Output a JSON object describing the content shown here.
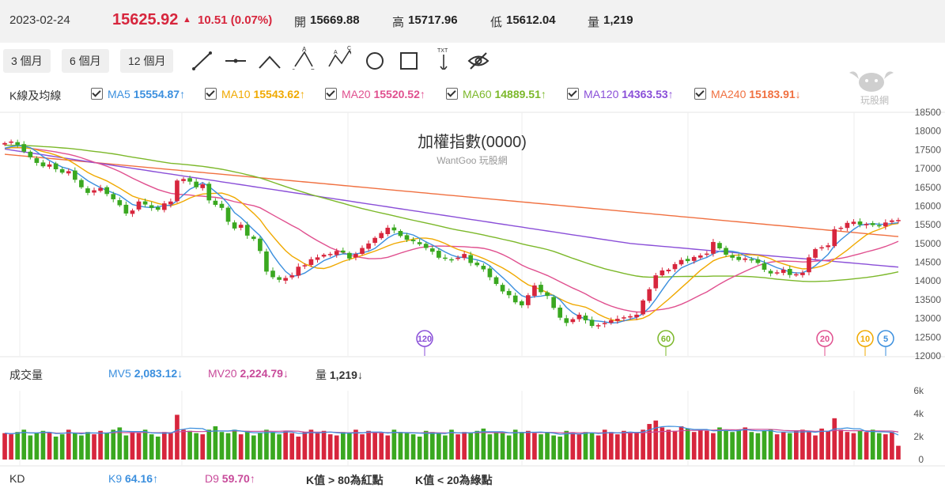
{
  "header": {
    "date": "2023-02-24",
    "price": "15625.92",
    "change_arrow": "▲",
    "change": "10.51 (0.07%)",
    "open_label": "開",
    "open": "15669.88",
    "high_label": "高",
    "high": "15717.96",
    "low_label": "低",
    "low": "15612.04",
    "vol_label": "量",
    "vol": "1,219"
  },
  "periods": [
    "3 個月",
    "6 個月",
    "12 個月"
  ],
  "tools": [
    "line-tool-icon",
    "hline-tool-icon",
    "angle-tool-icon",
    "abc-pattern-icon",
    "wave-pattern-icon",
    "circle-tool-icon",
    "rect-tool-icon",
    "text-tool-icon",
    "hide-icon"
  ],
  "tool_text": {
    "a": "A",
    "b": "B",
    "c": "C",
    "zero": "0",
    "txt": "TXT"
  },
  "ma_row": {
    "label": "K線及均線",
    "items": [
      {
        "name": "MA5",
        "value": "15554.87",
        "arrow": "↑",
        "color": "#3b8fde"
      },
      {
        "name": "MA10",
        "value": "15543.62",
        "arrow": "↑",
        "color": "#f0a900"
      },
      {
        "name": "MA20",
        "value": "15520.52",
        "arrow": "↑",
        "color": "#e0508f"
      },
      {
        "name": "MA60",
        "value": "14889.51",
        "arrow": "↑",
        "color": "#7cb82a"
      },
      {
        "name": "MA120",
        "value": "14363.53",
        "arrow": "↑",
        "color": "#8a4fd8"
      },
      {
        "name": "MA240",
        "value": "15183.91",
        "arrow": "↓",
        "color": "#f07040"
      }
    ]
  },
  "logo_text": "玩股網",
  "chart_title": "加權指數(0000)",
  "chart_sub": "WantGoo 玩股網",
  "vol_row": {
    "label": "成交量",
    "mv5_label": "MV5",
    "mv5": "2,083.12",
    "mv5_arrow": "↓",
    "mv20_label": "MV20",
    "mv20": "2,224.79",
    "mv20_arrow": "↓",
    "v_label": "量",
    "v": "1,219",
    "v_arrow": "↓"
  },
  "kd_row": {
    "label": "KD",
    "k_label": "K9",
    "k": "64.16",
    "k_arrow": "↑",
    "d_label": "D9",
    "d": "59.70",
    "d_arrow": "↑",
    "note1": "K值 > 80為紅點",
    "note2": "K值 < 20為綠點"
  },
  "colors": {
    "up": "#d7263d",
    "down": "#3aa820",
    "ma5": "#3b8fde",
    "ma10": "#f0a900",
    "ma20": "#e0508f",
    "ma60": "#7cb82a",
    "ma120": "#8a4fd8",
    "ma240": "#f07040"
  },
  "chart_data": {
    "type": "candlestick",
    "price_axis": {
      "ylim": [
        12000,
        18500
      ],
      "ticks": [
        18500,
        18000,
        17500,
        17000,
        16500,
        16000,
        15500,
        15000,
        14500,
        14000,
        13500,
        13000,
        12500,
        12000
      ]
    },
    "volume_axis": {
      "ylim": [
        0,
        6000
      ],
      "ticks": [
        "6k",
        "4k",
        "2k",
        "0"
      ]
    },
    "ma_badges": [
      "120",
      "60",
      "20",
      "10",
      "5"
    ],
    "closes": [
      17680,
      17720,
      17630,
      17450,
      17300,
      17150,
      17060,
      17110,
      16980,
      16890,
      16930,
      16700,
      16500,
      16350,
      16420,
      16480,
      16320,
      16180,
      16020,
      15800,
      15880,
      16120,
      16040,
      15950,
      15900,
      16070,
      16120,
      16680,
      16720,
      16650,
      16500,
      16580,
      16150,
      16030,
      15950,
      15580,
      15400,
      15500,
      15210,
      15120,
      14800,
      14250,
      14100,
      14030,
      14080,
      14150,
      14380,
      14420,
      14580,
      14630,
      14700,
      14720,
      14800,
      14760,
      14600,
      14720,
      14880,
      15000,
      15150,
      15280,
      15420,
      15350,
      15200,
      15100,
      15060,
      14980,
      14880,
      14780,
      14620,
      14600,
      14570,
      14620,
      14720,
      14480,
      14420,
      14310,
      14100,
      13920,
      13720,
      13620,
      13430,
      13350,
      13620,
      13880,
      13700,
      13600,
      13280,
      13020,
      12880,
      12980,
      13100,
      12950,
      12800,
      12820,
      12880,
      12950,
      12990,
      13030,
      13060,
      13100,
      13480,
      13780,
      14150,
      14280,
      14300,
      14450,
      14560,
      14530,
      14640,
      14680,
      14730,
      15040,
      14870,
      14700,
      14620,
      14560,
      14600,
      14560,
      14480,
      14300,
      14200,
      14230,
      14300,
      14160,
      14180,
      14220,
      14630,
      14850,
      14900,
      14950,
      15380,
      15420,
      15550,
      15580,
      15500,
      15520,
      15490,
      15480,
      15560,
      15615,
      15626
    ],
    "volumes_k": [
      2.3,
      2.2,
      2.4,
      2.6,
      2.1,
      2.3,
      2.5,
      2.4,
      2.0,
      2.2,
      2.6,
      2.3,
      2.1,
      2.4,
      2.2,
      2.5,
      2.3,
      2.6,
      2.8,
      2.1,
      2.4,
      2.3,
      2.6,
      2.2,
      2.0,
      2.4,
      2.3,
      3.9,
      2.6,
      2.5,
      2.3,
      2.2,
      2.6,
      2.9,
      2.4,
      2.3,
      2.6,
      2.2,
      2.5,
      2.1,
      2.3,
      2.6,
      2.4,
      2.2,
      2.5,
      2.3,
      2.0,
      2.4,
      2.6,
      2.3,
      2.5,
      2.2,
      2.1,
      2.4,
      2.3,
      2.6,
      2.2,
      2.5,
      2.4,
      2.3,
      2.1,
      2.6,
      2.4,
      2.3,
      2.2,
      2.0,
      2.5,
      2.4,
      2.3,
      2.1,
      2.6,
      2.2,
      2.4,
      2.3,
      2.5,
      2.7,
      2.2,
      2.4,
      2.3,
      2.1,
      2.6,
      2.4,
      2.5,
      2.3,
      2.2,
      2.4,
      2.1,
      2.0,
      2.5,
      2.3,
      2.2,
      2.4,
      2.3,
      2.1,
      2.6,
      2.4,
      2.2,
      2.5,
      2.3,
      2.4,
      2.6,
      3.1,
      3.4,
      2.8,
      2.6,
      2.5,
      2.9,
      2.7,
      2.4,
      2.6,
      2.5,
      2.3,
      2.8,
      2.5,
      2.4,
      2.6,
      2.8,
      2.4,
      2.3,
      2.5,
      2.6,
      2.2,
      2.4,
      2.3,
      2.5,
      2.6,
      2.4,
      2.1,
      2.7,
      2.5,
      3.6,
      2.6,
      2.4,
      2.3,
      2.5,
      2.4,
      2.6,
      2.3,
      2.2,
      2.4,
      1.2
    ]
  }
}
